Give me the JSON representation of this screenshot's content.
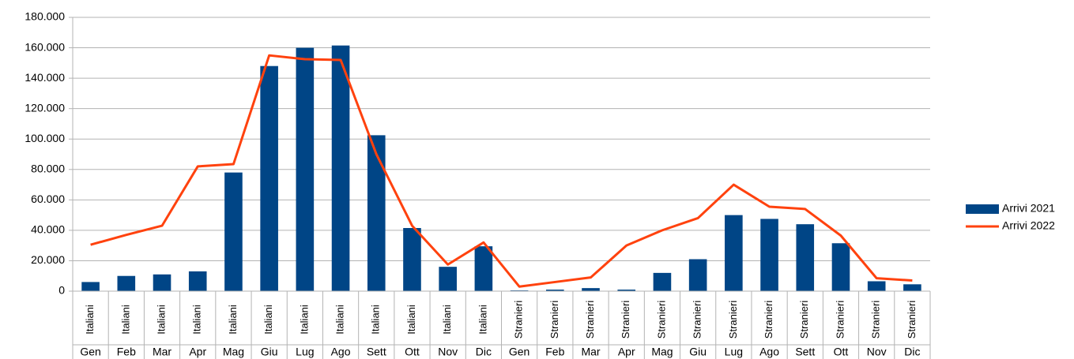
{
  "chart_data": {
    "type": "bar_line",
    "categories": [
      "Gen",
      "Feb",
      "Mar",
      "Apr",
      "Mag",
      "Giu",
      "Lug",
      "Ago",
      "Sett",
      "Ott",
      "Nov",
      "Dic",
      "Gen",
      "Feb",
      "Mar",
      "Apr",
      "Mag",
      "Giu",
      "Lug",
      "Ago",
      "Sett",
      "Ott",
      "Nov",
      "Dic"
    ],
    "category_groups": [
      "Italiani",
      "Italiani",
      "Italiani",
      "Italiani",
      "Italiani",
      "Italiani",
      "Italiani",
      "Italiani",
      "Italiani",
      "Italiani",
      "Italiani",
      "Italiani",
      "Stranieri",
      "Stranieri",
      "Stranieri",
      "Stranieri",
      "Stranieri",
      "Stranieri",
      "Stranieri",
      "Stranieri",
      "Stranieri",
      "Stranieri",
      "Stranieri",
      "Stranieri"
    ],
    "series": [
      {
        "name": "Arrivi 2021",
        "type": "bar",
        "color": "#004586",
        "values": [
          6000,
          10000,
          11000,
          13000,
          78000,
          148000,
          160000,
          161500,
          102500,
          41500,
          16000,
          29500,
          500,
          1000,
          2000,
          1000,
          12000,
          21000,
          50000,
          47500,
          44000,
          31500,
          6500,
          4500
        ]
      },
      {
        "name": "Arrivi 2022",
        "type": "line",
        "color": "#ff420e",
        "values": [
          30500,
          37000,
          43000,
          82000,
          83500,
          155000,
          152500,
          152000,
          90000,
          43000,
          17500,
          32000,
          3000,
          6000,
          9000,
          30000,
          40000,
          48000,
          70000,
          55500,
          54000,
          36500,
          8500,
          7000
        ]
      }
    ],
    "ylim": [
      0,
      180000
    ],
    "yticks": [
      0,
      {
        "value": 20000,
        "label": "20.000"
      },
      {
        "value": 40000,
        "label": "40.000"
      },
      {
        "value": 60000,
        "label": "60.000"
      },
      {
        "value": 80000,
        "label": "80.000"
      },
      {
        "value": 100000,
        "label": "100.000"
      },
      {
        "value": 120000,
        "label": "120.000"
      },
      {
        "value": 140000,
        "label": "140.000"
      },
      {
        "value": 160000,
        "label": "160.000"
      },
      {
        "value": 180000,
        "label": "180.000"
      }
    ],
    "grid": true,
    "legend": "right"
  }
}
